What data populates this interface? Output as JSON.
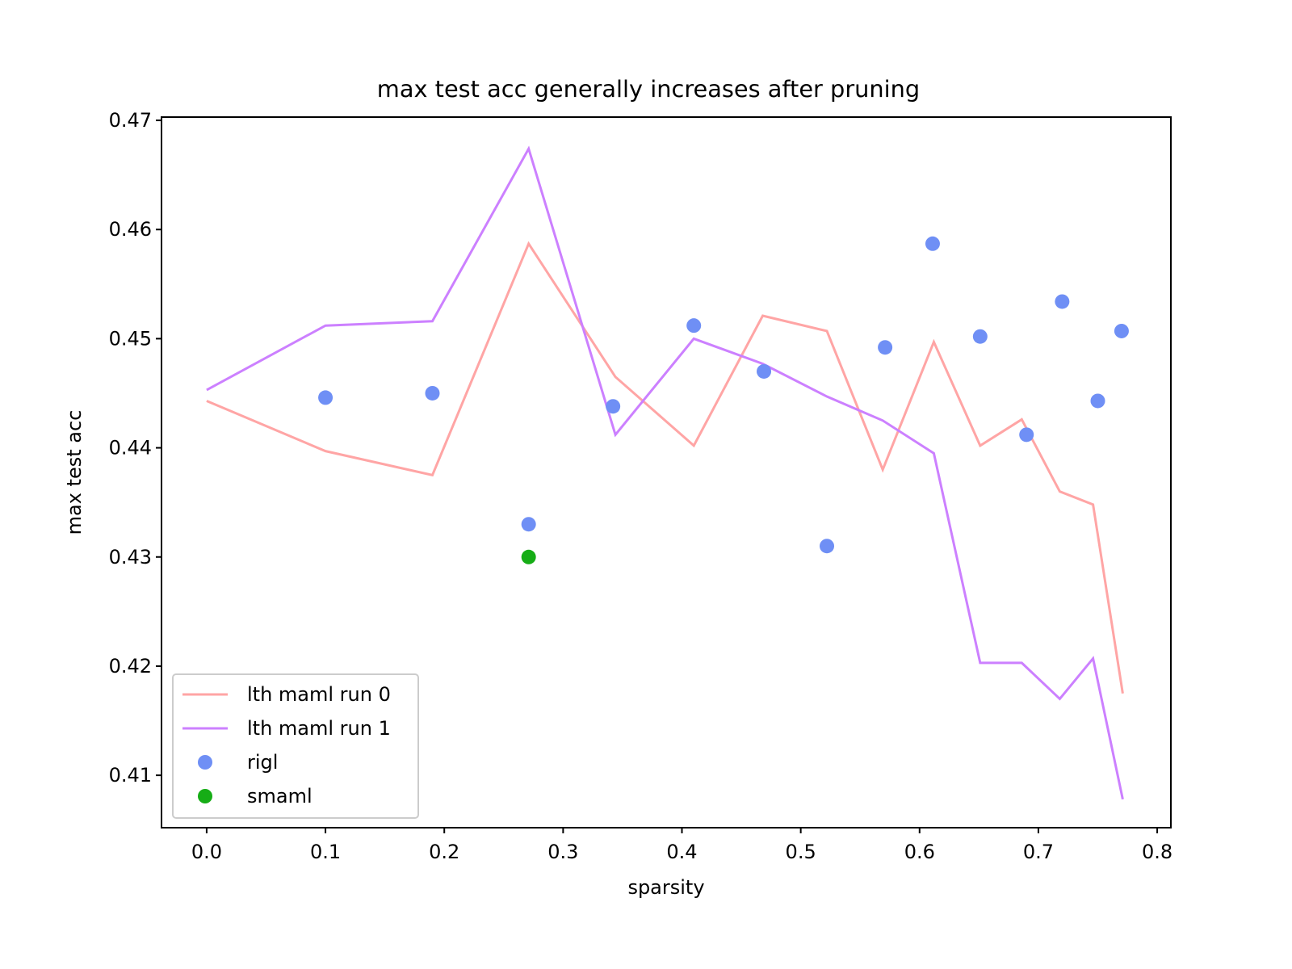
{
  "chart_data": {
    "type": "line",
    "title": "max test acc generally increases after pruning",
    "xlabel": "sparsity",
    "ylabel": "max test acc",
    "xlim": [
      -0.038,
      0.8115
    ],
    "ylim": [
      0.4052,
      0.4703
    ],
    "xticks": [
      0.0,
      0.1,
      0.2,
      0.3,
      0.4,
      0.5,
      0.6,
      0.7,
      0.8
    ],
    "xtick_labels": [
      "0.0",
      "0.1",
      "0.2",
      "0.3",
      "0.4",
      "0.5",
      "0.6",
      "0.7",
      "0.8"
    ],
    "yticks": [
      0.41,
      0.42,
      0.43,
      0.44,
      0.45,
      0.46,
      0.47
    ],
    "ytick_labels": [
      "0.41",
      "0.42",
      "0.43",
      "0.44",
      "0.45",
      "0.46",
      "0.47"
    ],
    "grid": false,
    "legend_position": "lower-left",
    "series": [
      {
        "name": "lth maml run 0",
        "kind": "line",
        "color": "#ffa5a5",
        "x": [
          0.0,
          0.1,
          0.19,
          0.271,
          0.344,
          0.41,
          0.468,
          0.522,
          0.569,
          0.612,
          0.651,
          0.686,
          0.718,
          0.746,
          0.771
        ],
        "y": [
          0.4443,
          0.4397,
          0.4375,
          0.4587,
          0.4465,
          0.4402,
          0.4521,
          0.4507,
          0.438,
          0.4497,
          0.4402,
          0.4426,
          0.436,
          0.4348,
          0.4175
        ]
      },
      {
        "name": "lth maml run 1",
        "kind": "line",
        "color": "#cc80ff",
        "x": [
          0.0,
          0.1,
          0.19,
          0.271,
          0.344,
          0.41,
          0.468,
          0.522,
          0.569,
          0.612,
          0.651,
          0.686,
          0.718,
          0.746,
          0.771
        ],
        "y": [
          0.4453,
          0.4512,
          0.4516,
          0.4674,
          0.4412,
          0.45,
          0.4477,
          0.4447,
          0.4425,
          0.4395,
          0.4203,
          0.4203,
          0.417,
          0.4207,
          0.4078
        ]
      },
      {
        "name": "rigl",
        "kind": "scatter",
        "color": "#6f8ff5",
        "x": [
          0.1,
          0.19,
          0.271,
          0.342,
          0.41,
          0.469,
          0.522,
          0.571,
          0.611,
          0.651,
          0.69,
          0.72,
          0.75,
          0.77
        ],
        "y": [
          0.4446,
          0.445,
          0.433,
          0.4438,
          0.4512,
          0.447,
          0.431,
          0.4492,
          0.4587,
          0.4502,
          0.4412,
          0.4534,
          0.4443,
          0.4507
        ]
      },
      {
        "name": "smaml",
        "kind": "scatter",
        "color": "#16ad16",
        "x": [
          0.271
        ],
        "y": [
          0.43
        ]
      }
    ]
  }
}
